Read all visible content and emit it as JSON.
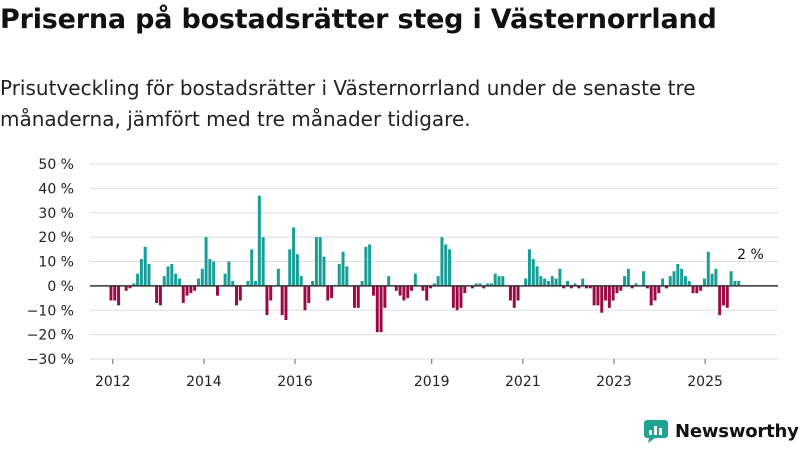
{
  "title": "Priserna på bostadsrätter steg i Västernorrland",
  "subtitle": "Prisutveckling för bostadsrätter i Västernorrland under de senaste tre månaderna, jämfört med tre månader tidigare.",
  "brand": {
    "name": "Newsworthy",
    "icon": "newsworthy-logo-icon",
    "color": "#21a391"
  },
  "colors": {
    "positive": "#169e97",
    "negative": "#9a0a45",
    "grid": "#dddddd",
    "zero": "#333333"
  },
  "chart_data": {
    "type": "bar",
    "title": "Priserna på bostadsrätter steg i Västernorrland",
    "xlabel": "",
    "ylabel": "",
    "ylim": [
      -30,
      50
    ],
    "yticks": [
      50,
      40,
      30,
      20,
      10,
      0,
      -10,
      -20,
      -30
    ],
    "ytick_labels": [
      "50 %",
      "40 %",
      "30 %",
      "20 %",
      "10 %",
      "0 %",
      "−10 %",
      "−20 %",
      "−30 %"
    ],
    "xlim": [
      2011.5,
      2026.6
    ],
    "xticks": [
      2012,
      2014,
      2016,
      2019,
      2021,
      2023,
      2025
    ],
    "xtick_labels": [
      "2012",
      "2014",
      "2016",
      "2019",
      "2021",
      "2023",
      "2025"
    ],
    "annotation": {
      "text": "2 %",
      "x": 2025.6,
      "y": 2
    },
    "x_start": 2011.96,
    "x_step": 0.0835,
    "values": [
      -6,
      -6,
      -8,
      0,
      -2,
      -1,
      1,
      5,
      11,
      16,
      9,
      0,
      -7,
      -8,
      4,
      8,
      9,
      5,
      3,
      -7,
      -4,
      -3,
      -2,
      3,
      7,
      20,
      11,
      10,
      -4,
      0,
      5,
      10,
      2,
      -8,
      -6,
      0,
      2,
      15,
      2,
      37,
      20,
      -12,
      -6,
      0,
      7,
      -12,
      -14,
      15,
      24,
      13,
      4,
      -10,
      -7,
      2,
      20,
      20,
      12,
      -6,
      -5,
      0,
      9,
      14,
      8,
      0,
      -9,
      -9,
      2,
      16,
      17,
      -4,
      -19,
      -19,
      -9,
      4,
      0,
      -2,
      -4,
      -6,
      -5,
      -2,
      5,
      0,
      -2,
      -6,
      -1,
      1,
      4,
      20,
      17,
      15,
      -9,
      -10,
      -9,
      -3,
      0,
      -1,
      1,
      1,
      -1,
      1,
      1,
      5,
      4,
      4,
      0,
      -6,
      -9,
      -6,
      0,
      3,
      15,
      11,
      8,
      4,
      3,
      2,
      4,
      3,
      7,
      -1,
      2,
      -1,
      1,
      -1,
      3,
      -1,
      -1,
      -8,
      -8,
      -11,
      -6,
      -9,
      -6,
      -3,
      -2,
      4,
      7,
      -1,
      1,
      0,
      6,
      -1,
      -8,
      -6,
      -3,
      3,
      -1,
      4,
      6,
      9,
      7,
      4,
      2,
      -3,
      -3,
      -2,
      3,
      14,
      5,
      7,
      -12,
      -8,
      -9,
      6,
      2,
      2
    ]
  }
}
